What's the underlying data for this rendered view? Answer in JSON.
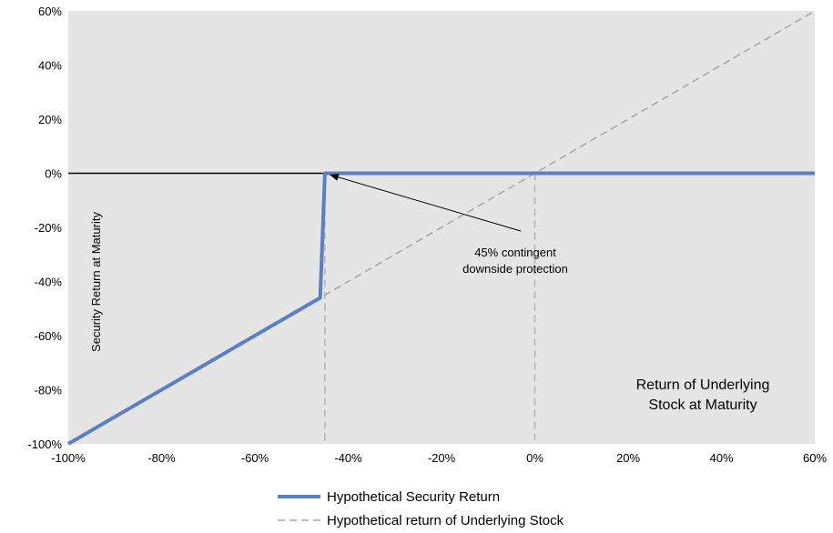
{
  "chart_data": {
    "type": "line",
    "xlabel": "Return of Underlying Stock at Maturity",
    "ylabel": "Security Return at Maturity",
    "xlim": [
      -100,
      60
    ],
    "ylim": [
      -100,
      60
    ],
    "x_ticks": [
      -100,
      -80,
      -60,
      -40,
      -20,
      0,
      20,
      40,
      60
    ],
    "y_ticks": [
      -100,
      -80,
      -60,
      -40,
      -20,
      0,
      20,
      40,
      60
    ],
    "x_tick_labels": [
      "-100%",
      "-80%",
      "-60%",
      "-40%",
      "-20%",
      "0%",
      "20%",
      "40%",
      "60%"
    ],
    "y_tick_labels": [
      "-100%",
      "-80%",
      "-60%",
      "-40%",
      "-20%",
      "0%",
      "20%",
      "40%",
      "60%"
    ],
    "grid": false,
    "legend_position": "bottom",
    "series": [
      {
        "name": "Hypothetical Security Return",
        "color": "#5b7fc7",
        "style": "solid",
        "x": [
          -100,
          -46,
          -45,
          60
        ],
        "y": [
          -100,
          -46,
          0,
          0
        ]
      },
      {
        "name": "Hypothetical return of Underlying Stock",
        "color": "#a6a6a6",
        "style": "dashed",
        "x": [
          -100,
          60
        ],
        "y": [
          -100,
          60
        ]
      }
    ],
    "reference_lines": [
      {
        "orientation": "vertical",
        "x": -45,
        "style": "dashed",
        "color": "#b3b3b3"
      },
      {
        "orientation": "vertical",
        "x": 0,
        "style": "dashed",
        "color": "#b3b3b3"
      },
      {
        "orientation": "horizontal",
        "y": 0,
        "style": "solid",
        "color": "#000000"
      }
    ],
    "annotation": {
      "lines": [
        "45% contingent",
        "downside protection"
      ],
      "points_to": {
        "x": -45,
        "y": -10
      }
    },
    "colors": {
      "plot_background": "#e5e5e5"
    }
  }
}
